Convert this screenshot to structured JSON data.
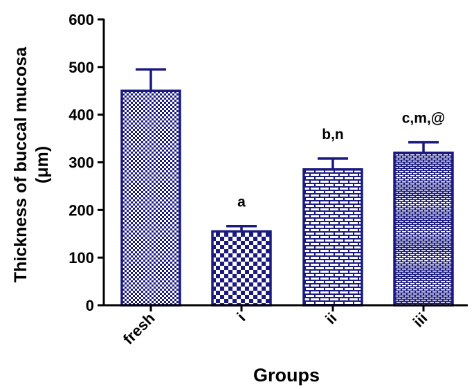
{
  "chart_data": {
    "type": "bar",
    "title": "",
    "xlabel": "Groups",
    "ylabel": "Thickness of buccal mucosa",
    "ylabel_unit": "(μm)",
    "categories": [
      "fresh",
      "i",
      "ii",
      "iii"
    ],
    "values": [
      450,
      155,
      285,
      320
    ],
    "error_plus": [
      45,
      11,
      23,
      22
    ],
    "annotations": [
      "",
      "a",
      "b,n",
      "c,m,@"
    ],
    "y_ticks": [
      "0",
      "100",
      "200",
      "300",
      "400",
      "500",
      "600"
    ],
    "ylim": [
      0,
      600
    ],
    "grid": false,
    "legend": "none",
    "patterns": [
      "checker-fine",
      "checker",
      "brick",
      "brick-fine"
    ],
    "color": "#1a1a80"
  }
}
